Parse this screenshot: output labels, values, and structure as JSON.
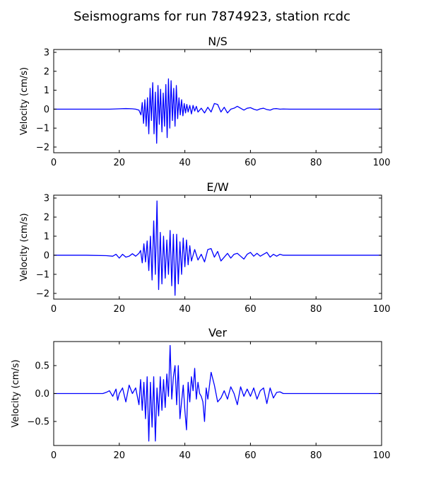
{
  "figure": {
    "title": "Seismograms for run 7874923, station rcdc"
  },
  "style": {
    "trace_color": "#0000ff",
    "axes_color": "#000000",
    "background": "#ffffff"
  },
  "chart_data": [
    {
      "type": "line",
      "title": "N/S",
      "xlabel": "",
      "ylabel": "Velocity (cm/s)",
      "xlim": [
        0,
        100
      ],
      "ylim": [
        -2.3,
        3.15
      ],
      "xticks": [
        0,
        20,
        40,
        60,
        80,
        100
      ],
      "yticks": [
        -2,
        -1,
        0,
        1,
        2,
        3
      ],
      "grid": false,
      "series": [
        {
          "x": [
            0,
            10,
            17,
            20,
            22,
            24,
            25,
            26,
            26.6,
            27,
            27.4,
            27.8,
            28.2,
            28.6,
            29,
            29.4,
            29.8,
            30.2,
            30.6,
            31,
            31.4,
            31.8,
            32.2,
            32.6,
            33,
            33.4,
            33.8,
            34.2,
            34.6,
            35,
            35.4,
            35.8,
            36.2,
            36.6,
            37,
            37.4,
            37.8,
            38.2,
            38.6,
            39,
            39.4,
            39.8,
            40.2,
            40.6,
            41,
            41.5,
            42,
            42.5,
            43,
            43.5,
            44,
            45,
            46,
            47,
            48,
            49,
            50,
            51,
            52,
            53,
            54,
            55,
            56,
            57,
            58,
            59,
            60,
            61,
            62,
            63,
            64,
            65,
            66,
            67,
            68,
            69,
            70,
            72,
            75,
            80,
            90,
            100
          ],
          "y": [
            0,
            0,
            0,
            0.02,
            0.03,
            0.02,
            0,
            -0.05,
            -0.3,
            0.35,
            -0.75,
            0.5,
            -0.9,
            0.6,
            -1.3,
            1.1,
            -0.6,
            1.4,
            -1.3,
            0.9,
            -1.8,
            1.25,
            -0.8,
            1.05,
            -1.2,
            0.85,
            -0.9,
            1.3,
            -1.5,
            1.6,
            -1.0,
            1.5,
            -0.6,
            1.1,
            -0.9,
            1.25,
            -0.5,
            0.6,
            -0.3,
            0.5,
            -0.35,
            0.3,
            -0.2,
            0.25,
            -0.15,
            0.2,
            -0.25,
            0.2,
            -0.1,
            0.15,
            -0.15,
            0.05,
            -0.2,
            0.1,
            -0.15,
            0.3,
            0.25,
            -0.15,
            0.1,
            -0.2,
            0,
            0.05,
            0.15,
            0.05,
            -0.05,
            0.05,
            0.08,
            0,
            -0.05,
            0.02,
            0.05,
            -0.02,
            -0.05,
            0.02,
            0.03,
            0,
            0.01,
            0,
            0,
            0,
            0,
            0
          ]
        }
      ]
    },
    {
      "type": "line",
      "title": "E/W",
      "xlabel": "",
      "ylabel": "Velocity (cm/s)",
      "xlim": [
        0,
        100
      ],
      "ylim": [
        -2.3,
        3.15
      ],
      "xticks": [
        0,
        20,
        40,
        60,
        80,
        100
      ],
      "yticks": [
        -2,
        -1,
        0,
        1,
        2,
        3
      ],
      "grid": false,
      "series": [
        {
          "x": [
            0,
            10,
            16,
            18,
            19,
            20,
            21,
            22,
            23,
            24,
            25,
            26,
            26.5,
            27,
            27.5,
            28,
            28.5,
            29,
            29.5,
            30,
            30.5,
            31,
            31.5,
            32,
            32.5,
            33,
            33.5,
            34,
            34.5,
            35,
            35.5,
            36,
            36.5,
            37,
            37.5,
            38,
            38.5,
            39,
            39.5,
            40,
            40.5,
            41,
            41.5,
            42,
            43,
            44,
            45,
            46,
            47,
            48,
            49,
            50,
            51,
            52,
            53,
            54,
            55,
            56,
            57,
            58,
            59,
            60,
            61,
            62,
            63,
            64,
            65,
            66,
            67,
            68,
            69,
            70,
            72,
            75,
            80,
            90,
            100
          ],
          "y": [
            0,
            0,
            -0.02,
            -0.05,
            0.05,
            -0.15,
            0.05,
            -0.1,
            -0.05,
            0.08,
            -0.05,
            0.1,
            0.25,
            -0.4,
            0.6,
            -0.35,
            0.75,
            -0.8,
            1.0,
            -1.3,
            1.8,
            -1.0,
            2.85,
            -1.8,
            1.2,
            -1.5,
            1.0,
            -1.2,
            0.8,
            -1.0,
            1.3,
            -1.6,
            1.1,
            -2.1,
            1.1,
            -1.5,
            0.7,
            -1.0,
            0.9,
            -0.6,
            0.8,
            -0.5,
            0.5,
            -0.3,
            0.3,
            -0.25,
            0.05,
            -0.35,
            0.3,
            0.35,
            -0.1,
            0.2,
            -0.3,
            -0.1,
            0.1,
            -0.15,
            0.05,
            0.1,
            -0.05,
            -0.2,
            0.05,
            0.15,
            -0.05,
            0.1,
            -0.05,
            0.05,
            0.15,
            -0.1,
            0.05,
            -0.05,
            0.05,
            0,
            0,
            0,
            0,
            0,
            0
          ]
        }
      ]
    },
    {
      "type": "line",
      "title": "Ver",
      "xlabel": "",
      "ylabel": "Velocity (cm/s)",
      "xlim": [
        0,
        100
      ],
      "ylim": [
        -0.93,
        0.93
      ],
      "xticks": [
        0,
        20,
        40,
        60,
        80,
        100
      ],
      "yticks": [
        -0.5,
        0.0,
        0.5
      ],
      "ytick_labels": [
        "−0.5",
        "0.0",
        "0.5"
      ],
      "grid": false,
      "series": [
        {
          "x": [
            0,
            10,
            15,
            16,
            17,
            18,
            19,
            19.5,
            20,
            21,
            22,
            23,
            24,
            25,
            26,
            26.5,
            27,
            27.5,
            28,
            28.5,
            29,
            29.5,
            30,
            30.5,
            31,
            31.5,
            32,
            32.5,
            33,
            33.5,
            34,
            34.5,
            35,
            35.5,
            36,
            36.5,
            37,
            37.5,
            38,
            38.5,
            39,
            39.5,
            40,
            40.5,
            41,
            41.5,
            42,
            42.5,
            43,
            43.5,
            44,
            44.5,
            45,
            45.5,
            46,
            46.5,
            47,
            48,
            49,
            50,
            51,
            52,
            53,
            54,
            55,
            56,
            57,
            58,
            59,
            60,
            61,
            62,
            63,
            64,
            65,
            66,
            67,
            68,
            69,
            70,
            72,
            75,
            80,
            90,
            100
          ],
          "y": [
            0,
            0,
            0,
            0.02,
            0.05,
            -0.05,
            0.08,
            -0.12,
            0,
            0.1,
            -0.15,
            0.15,
            0,
            0.1,
            -0.2,
            0.25,
            -0.3,
            0.2,
            -0.45,
            0.3,
            -0.85,
            0.2,
            -0.6,
            0.3,
            -0.85,
            0.1,
            -0.4,
            0.3,
            -0.3,
            0.25,
            -0.25,
            0.35,
            -0.05,
            0.86,
            -0.1,
            0.3,
            0.5,
            -0.2,
            0.5,
            -0.45,
            -0.15,
            0.15,
            -0.3,
            -0.65,
            0.2,
            -0.15,
            0.3,
            0.05,
            0.45,
            -0.1,
            0.2,
            0,
            -0.05,
            -0.15,
            -0.5,
            0.1,
            -0.1,
            0.38,
            0.15,
            -0.15,
            -0.08,
            0.05,
            -0.1,
            0.12,
            0,
            -0.2,
            0.12,
            -0.05,
            0.08,
            -0.05,
            0.1,
            -0.1,
            0.05,
            0.1,
            -0.18,
            0.1,
            -0.08,
            0.02,
            0.03,
            0,
            0,
            0,
            0,
            0,
            0
          ]
        }
      ]
    }
  ]
}
